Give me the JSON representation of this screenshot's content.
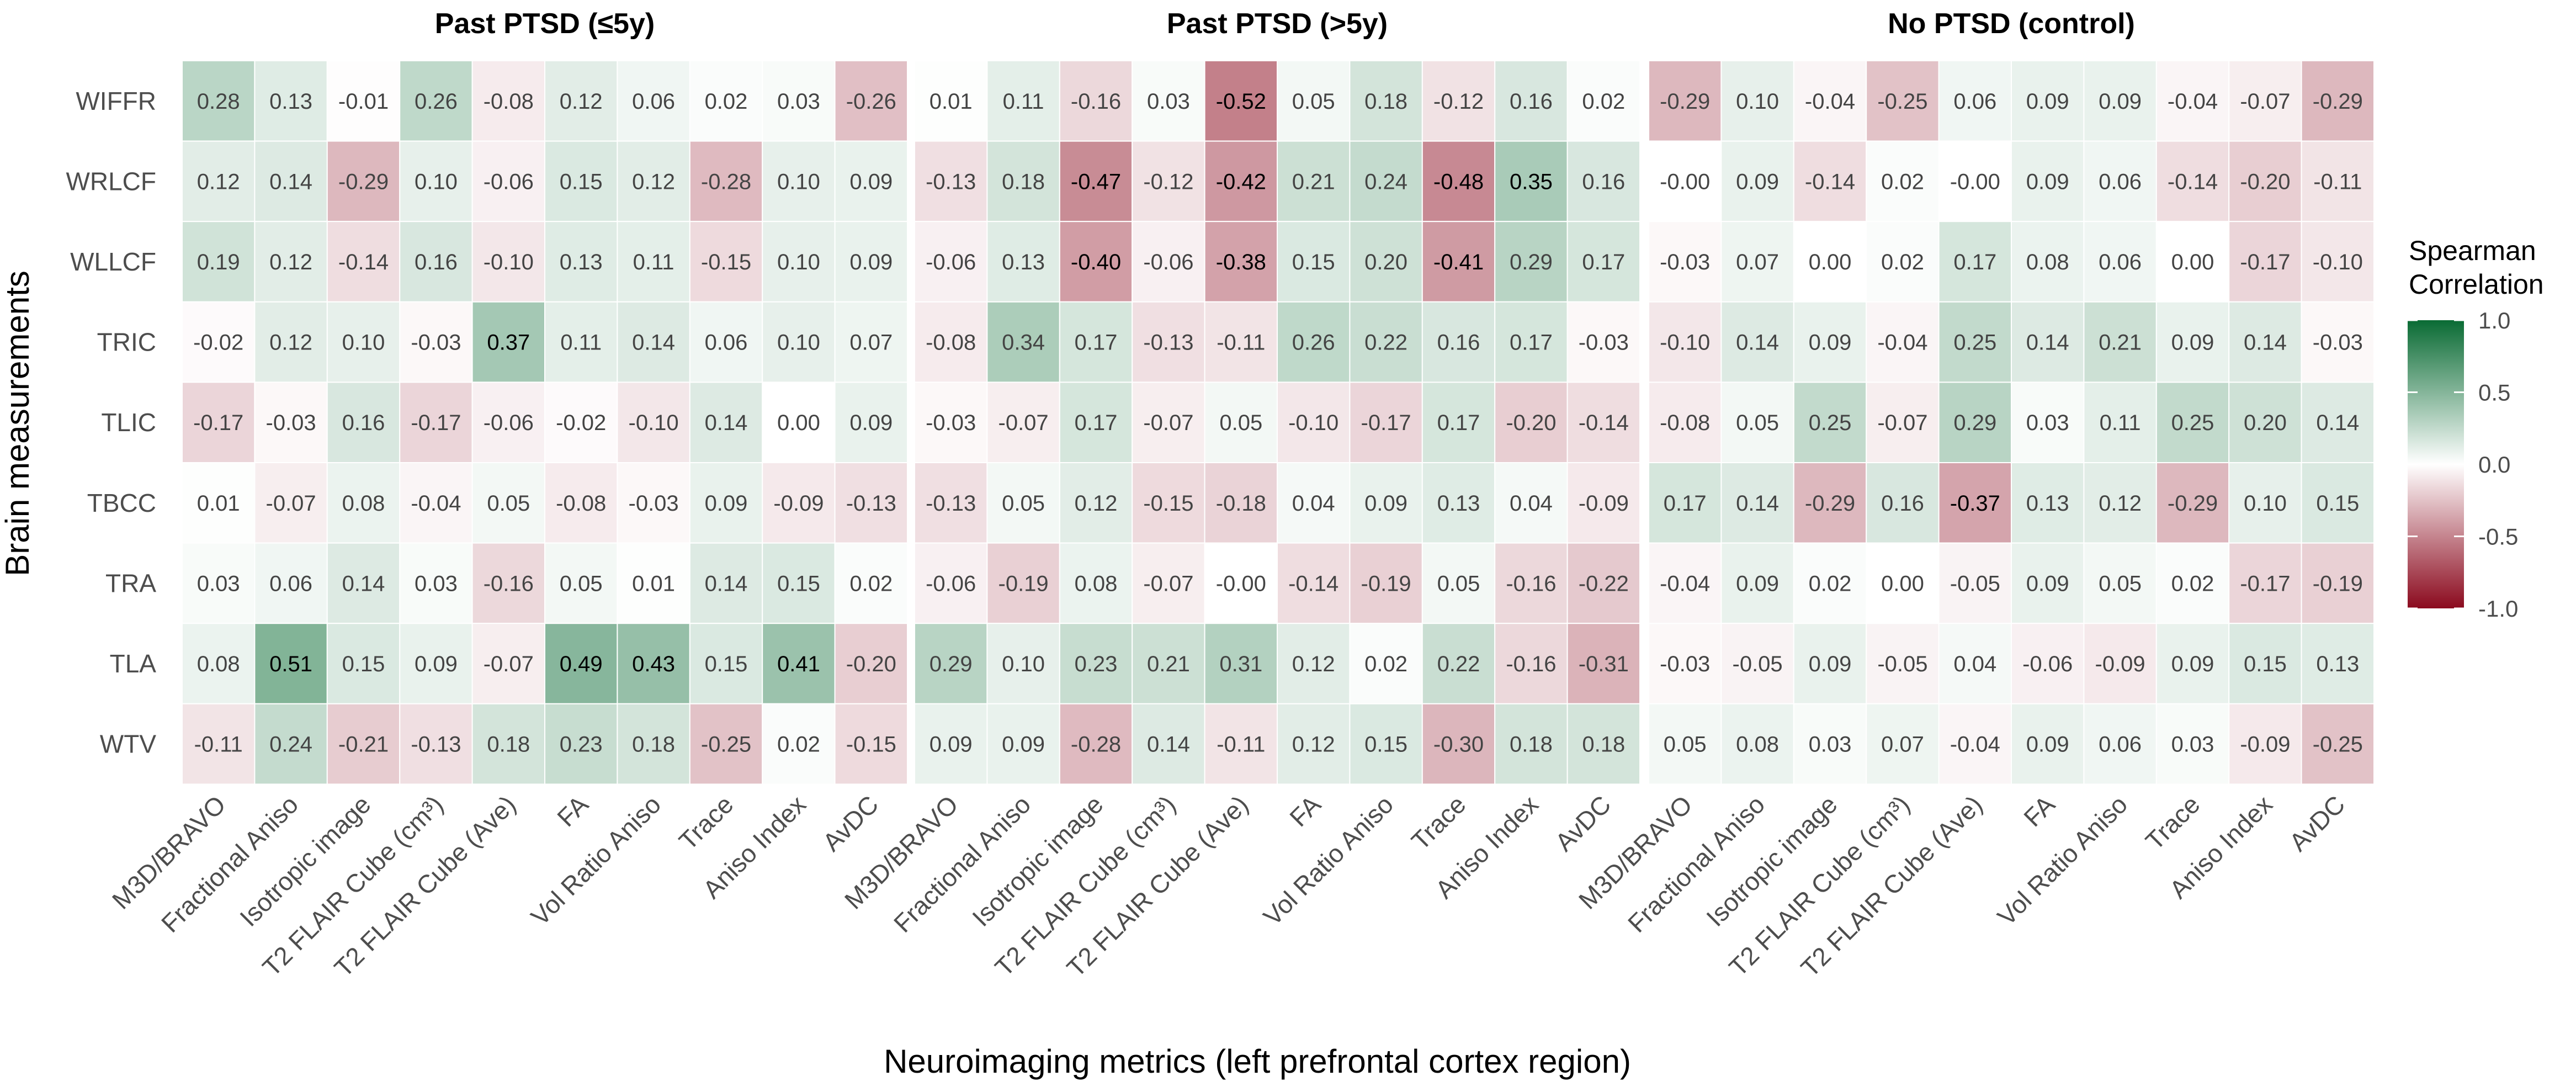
{
  "chart_data": {
    "type": "heatmap",
    "ylabel": "Brain measurements",
    "xlabel": "Neuroimaging metrics (left prefrontal cortex region)",
    "rows": [
      "WIFFR",
      "WRLCF",
      "WLLCF",
      "TRIC",
      "TLIC",
      "TBCC",
      "TRA",
      "TLA",
      "WTV"
    ],
    "columns": [
      "M3D/BRAVO",
      "Fractional Aniso",
      "Isotropic image",
      "T2 FLAIR Cube (cm³)",
      "T2 FLAIR Cube (Ave)",
      "FA",
      "Vol Ratio Aniso",
      "Trace",
      "Aniso Index",
      "AvDC"
    ],
    "panels": [
      {
        "title": "Past PTSD (≤5y)",
        "values": [
          [
            0.28,
            0.13,
            -0.01,
            0.26,
            -0.08,
            0.12,
            0.06,
            0.02,
            0.03,
            -0.26
          ],
          [
            0.12,
            0.14,
            -0.29,
            0.1,
            -0.06,
            0.15,
            0.12,
            -0.28,
            0.1,
            0.09
          ],
          [
            0.19,
            0.12,
            -0.14,
            0.16,
            -0.1,
            0.13,
            0.11,
            -0.15,
            0.1,
            0.09
          ],
          [
            -0.02,
            0.12,
            0.1,
            -0.03,
            0.37,
            0.11,
            0.14,
            0.06,
            0.1,
            0.07
          ],
          [
            -0.17,
            -0.03,
            0.16,
            -0.17,
            -0.06,
            -0.02,
            -0.1,
            0.14,
            0.0,
            0.09
          ],
          [
            0.01,
            -0.07,
            0.08,
            -0.04,
            0.05,
            -0.08,
            -0.03,
            0.09,
            -0.09,
            -0.13
          ],
          [
            0.03,
            0.06,
            0.14,
            0.03,
            -0.16,
            0.05,
            0.01,
            0.14,
            0.15,
            0.02
          ],
          [
            0.08,
            0.51,
            0.15,
            0.09,
            -0.07,
            0.49,
            0.43,
            0.15,
            0.41,
            -0.2
          ],
          [
            -0.11,
            0.24,
            -0.21,
            -0.13,
            0.18,
            0.23,
            0.18,
            -0.25,
            0.02,
            -0.15
          ]
        ],
        "labels": [
          [
            "0.28",
            "0.13",
            "-0.01",
            "0.26",
            "-0.08",
            "0.12",
            "0.06",
            "0.02",
            "0.03",
            "-0.26"
          ],
          [
            "0.12",
            "0.14",
            "-0.29",
            "0.10",
            "-0.06",
            "0.15",
            "0.12",
            "-0.28",
            "0.10",
            "0.09"
          ],
          [
            "0.19",
            "0.12",
            "-0.14",
            "0.16",
            "-0.10",
            "0.13",
            "0.11",
            "-0.15",
            "0.10",
            "0.09"
          ],
          [
            "-0.02",
            "0.12",
            "0.10",
            "-0.03",
            "0.37",
            "0.11",
            "0.14",
            "0.06",
            "0.10",
            "0.07"
          ],
          [
            "-0.17",
            "-0.03",
            "0.16",
            "-0.17",
            "-0.06",
            "-0.02",
            "-0.10",
            "0.14",
            "0.00",
            "0.09"
          ],
          [
            "0.01",
            "-0.07",
            "0.08",
            "-0.04",
            "0.05",
            "-0.08",
            "-0.03",
            "0.09",
            "-0.09",
            "-0.13"
          ],
          [
            "0.03",
            "0.06",
            "0.14",
            "0.03",
            "-0.16",
            "0.05",
            "0.01",
            "0.14",
            "0.15",
            "0.02"
          ],
          [
            "0.08",
            "0.51",
            "0.15",
            "0.09",
            "-0.07",
            "0.49",
            "0.43",
            "0.15",
            "0.41",
            "-0.20"
          ],
          [
            "-0.11",
            "0.24",
            "-0.21",
            "-0.13",
            "0.18",
            "0.23",
            "0.18",
            "-0.25",
            "0.02",
            "-0.15"
          ]
        ]
      },
      {
        "title": "Past PTSD (>5y)",
        "values": [
          [
            0.01,
            0.11,
            -0.16,
            0.03,
            -0.52,
            0.05,
            0.18,
            -0.12,
            0.16,
            0.02
          ],
          [
            -0.13,
            0.18,
            -0.47,
            -0.12,
            -0.42,
            0.21,
            0.24,
            -0.48,
            0.35,
            0.16
          ],
          [
            -0.06,
            0.13,
            -0.4,
            -0.06,
            -0.38,
            0.15,
            0.2,
            -0.41,
            0.29,
            0.17
          ],
          [
            -0.08,
            0.34,
            0.17,
            -0.13,
            -0.11,
            0.26,
            0.22,
            0.16,
            0.17,
            -0.03
          ],
          [
            -0.03,
            -0.07,
            0.17,
            -0.07,
            0.05,
            -0.1,
            -0.17,
            0.17,
            -0.2,
            -0.14
          ],
          [
            -0.13,
            0.05,
            0.12,
            -0.15,
            -0.18,
            0.04,
            0.09,
            0.13,
            0.04,
            -0.09
          ],
          [
            -0.06,
            -0.19,
            0.08,
            -0.07,
            -0.0,
            -0.14,
            -0.19,
            0.05,
            -0.16,
            -0.22
          ],
          [
            0.29,
            0.1,
            0.23,
            0.21,
            0.31,
            0.12,
            0.02,
            0.22,
            -0.16,
            -0.31
          ],
          [
            0.09,
            0.09,
            -0.28,
            0.14,
            -0.11,
            0.12,
            0.15,
            -0.3,
            0.18,
            0.18
          ]
        ],
        "labels": [
          [
            "0.01",
            "0.11",
            "-0.16",
            "0.03",
            "-0.52",
            "0.05",
            "0.18",
            "-0.12",
            "0.16",
            "0.02"
          ],
          [
            "-0.13",
            "0.18",
            "-0.47",
            "-0.12",
            "-0.42",
            "0.21",
            "0.24",
            "-0.48",
            "0.35",
            "0.16"
          ],
          [
            "-0.06",
            "0.13",
            "-0.40",
            "-0.06",
            "-0.38",
            "0.15",
            "0.20",
            "-0.41",
            "0.29",
            "0.17"
          ],
          [
            "-0.08",
            "0.34",
            "0.17",
            "-0.13",
            "-0.11",
            "0.26",
            "0.22",
            "0.16",
            "0.17",
            "-0.03"
          ],
          [
            "-0.03",
            "-0.07",
            "0.17",
            "-0.07",
            "0.05",
            "-0.10",
            "-0.17",
            "0.17",
            "-0.20",
            "-0.14"
          ],
          [
            "-0.13",
            "0.05",
            "0.12",
            "-0.15",
            "-0.18",
            "0.04",
            "0.09",
            "0.13",
            "0.04",
            "-0.09"
          ],
          [
            "-0.06",
            "-0.19",
            "0.08",
            "-0.07",
            "-0.00",
            "-0.14",
            "-0.19",
            "0.05",
            "-0.16",
            "-0.22"
          ],
          [
            "0.29",
            "0.10",
            "0.23",
            "0.21",
            "0.31",
            "0.12",
            "0.02",
            "0.22",
            "-0.16",
            "-0.31"
          ],
          [
            "0.09",
            "0.09",
            "-0.28",
            "0.14",
            "-0.11",
            "0.12",
            "0.15",
            "-0.30",
            "0.18",
            "0.18"
          ]
        ]
      },
      {
        "title": "No PTSD (control)",
        "values": [
          [
            -0.29,
            0.1,
            -0.04,
            -0.25,
            0.06,
            0.09,
            0.09,
            -0.04,
            -0.07,
            -0.29
          ],
          [
            -0.0,
            0.09,
            -0.14,
            0.02,
            -0.0,
            0.09,
            0.06,
            -0.14,
            -0.2,
            -0.11
          ],
          [
            -0.03,
            0.07,
            0.0,
            0.02,
            0.17,
            0.08,
            0.06,
            0.0,
            -0.17,
            -0.1
          ],
          [
            -0.1,
            0.14,
            0.09,
            -0.04,
            0.25,
            0.14,
            0.21,
            0.09,
            0.14,
            -0.03
          ],
          [
            -0.08,
            0.05,
            0.25,
            -0.07,
            0.29,
            0.03,
            0.11,
            0.25,
            0.2,
            0.14
          ],
          [
            0.17,
            0.14,
            -0.29,
            0.16,
            -0.37,
            0.13,
            0.12,
            -0.29,
            0.1,
            0.15
          ],
          [
            -0.04,
            0.09,
            0.02,
            0.0,
            -0.05,
            0.09,
            0.05,
            0.02,
            -0.17,
            -0.19
          ],
          [
            -0.03,
            -0.05,
            0.09,
            -0.05,
            0.04,
            -0.06,
            -0.09,
            0.09,
            0.15,
            0.13
          ],
          [
            0.05,
            0.08,
            0.03,
            0.07,
            -0.04,
            0.09,
            0.06,
            0.03,
            -0.09,
            -0.25
          ]
        ],
        "labels": [
          [
            "-0.29",
            "0.10",
            "-0.04",
            "-0.25",
            "0.06",
            "0.09",
            "0.09",
            "-0.04",
            "-0.07",
            "-0.29"
          ],
          [
            "-0.00",
            "0.09",
            "-0.14",
            "0.02",
            "-0.00",
            "0.09",
            "0.06",
            "-0.14",
            "-0.20",
            "-0.11"
          ],
          [
            "-0.03",
            "0.07",
            "0.00",
            "0.02",
            "0.17",
            "0.08",
            "0.06",
            "0.00",
            "-0.17",
            "-0.10"
          ],
          [
            "-0.10",
            "0.14",
            "0.09",
            "-0.04",
            "0.25",
            "0.14",
            "0.21",
            "0.09",
            "0.14",
            "-0.03"
          ],
          [
            "-0.08",
            "0.05",
            "0.25",
            "-0.07",
            "0.29",
            "0.03",
            "0.11",
            "0.25",
            "0.20",
            "0.14"
          ],
          [
            "0.17",
            "0.14",
            "-0.29",
            "0.16",
            "-0.37",
            "0.13",
            "0.12",
            "-0.29",
            "0.10",
            "0.15"
          ],
          [
            "-0.04",
            "0.09",
            "0.02",
            "0.00",
            "-0.05",
            "0.09",
            "0.05",
            "0.02",
            "-0.17",
            "-0.19"
          ],
          [
            "-0.03",
            "-0.05",
            "0.09",
            "-0.05",
            "0.04",
            "-0.06",
            "-0.09",
            "0.09",
            "0.15",
            "0.13"
          ],
          [
            "0.05",
            "0.08",
            "0.03",
            "0.07",
            "-0.04",
            "0.09",
            "0.06",
            "0.03",
            "-0.09",
            "-0.25"
          ]
        ]
      }
    ],
    "color_scale": {
      "min": -1.0,
      "max": 1.0,
      "low_color": "#8b0a1e",
      "mid_color": "#ffffff",
      "high_color": "#0a6b34"
    },
    "legend": {
      "title_line1": "Spearman",
      "title_line2": "Correlation",
      "ticks": [
        "1.0",
        "0.5",
        "0.0",
        "-0.5",
        "-1.0"
      ],
      "tick_values": [
        1.0,
        0.5,
        0.0,
        -0.5,
        -1.0
      ],
      "position": "right"
    }
  }
}
